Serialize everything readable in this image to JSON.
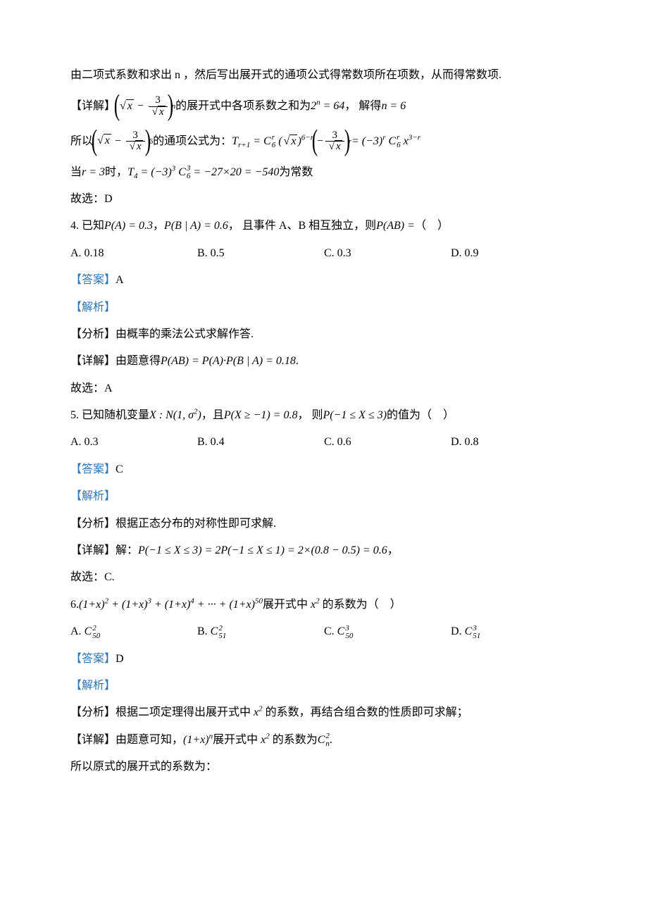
{
  "intro": {
    "line1": "由二项式系数和求出 n ，然后写出展开式的通项公式得常数项所在项数，从而得常数项.",
    "detail_label": "【详解】",
    "detail_mid": " 的展开式中各项系数之和为 ",
    "detail_eq1": "2ⁿ = 64",
    "detail_end": "， 解得 n = 6",
    "line3_pre": "所以 ",
    "line3_mid": " 的通项公式为： ",
    "line4_pre": "当 ",
    "line4_r": "r = 3",
    "line4_mid": " 时， ",
    "line4_end": " 为常数",
    "conclude": "故选：D"
  },
  "q4": {
    "stem_pre": "4. 已知 ",
    "pa": "P(A) = 0.3",
    "sep1": " ， ",
    "pba": "P(B | A) = 0.6",
    "mid": " ， 且事件 A、B 相互独立，则 ",
    "pab": "P(AB) = ",
    "tail": "（　）",
    "optA": "A. 0.18",
    "optB": "B. 0.5",
    "optC": "C. 0.3",
    "optD": "D. 0.9",
    "answer_label": "【答案】",
    "answer": "A",
    "jiexi": "【解析】",
    "fenxi": "【分析】由概率的乘法公式求解作答.",
    "detail_pre": "【详解】由题意得 ",
    "detail_eq": "P(AB) = P(A)·P(B | A) = 0.18",
    "detail_end": ".",
    "conclude": "故选：A"
  },
  "q5": {
    "stem_pre": "5. 已知随机变量 ",
    "var": "X : N(1, σ²)",
    "mid1": "，且 ",
    "p1": "P(X ≥ −1) = 0.8",
    "mid2": "， 则 ",
    "p2": "P(−1 ≤ X ≤ 3)",
    "tail": " 的值为（　）",
    "optA": "A. 0.3",
    "optB": "B. 0.4",
    "optC": "C. 0.6",
    "optD": "D. 0.8",
    "answer_label": "【答案】",
    "answer": "C",
    "jiexi": "【解析】",
    "fenxi": "【分析】根据正态分布的对称性即可求解.",
    "detail_pre": "【详解】解： ",
    "detail_eq": "P(−1 ≤ X ≤ 3) = 2P(−1 ≤ X ≤ 1) = 2×(0.8 − 0.5) = 0.6",
    "detail_end": " ，",
    "conclude": "故选：C."
  },
  "q6": {
    "stem_pre": "6. ",
    "expr": "(1+x)² + (1+x)³ + (1+x)⁴ + ··· + (1+x)⁵⁰",
    "mid": " 展开式中 x² 的系数为（　）",
    "optA_pre": "A.  ",
    "optB_pre": "B.  ",
    "optC_pre": "C.  ",
    "optD_pre": "D.  ",
    "answer_label": "【答案】",
    "answer": "D",
    "jiexi": "【解析】",
    "fenxi": "【分析】根据二项定理得出展开式中 x² 的系数，再结合组合数的性质即可求解；",
    "detail_pre": "【详解】由题意可知， ",
    "detail_mid": " 展开式中 x² 的系数为 ",
    "detail_end": ".",
    "conclude": "所以原式的展开式的系数为："
  },
  "colors": {
    "text": "#000000",
    "accent": "#2e74b5",
    "background": "#ffffff"
  }
}
